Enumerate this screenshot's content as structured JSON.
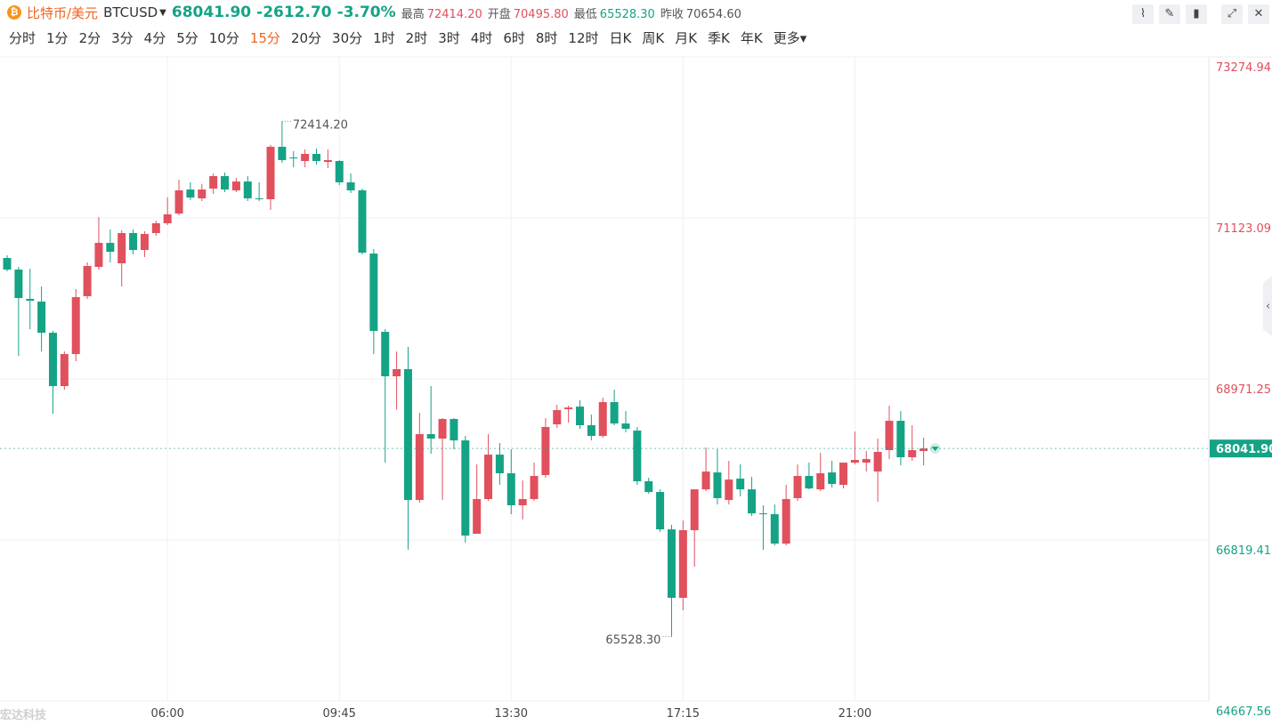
{
  "header": {
    "name": "比特币/美元",
    "symbol": "BTCUSD",
    "price": "68041.90",
    "change": "-2612.70",
    "change_pct": "-3.70%",
    "stats": [
      {
        "label": "最高",
        "value": "72414.20"
      },
      {
        "label": "开盘",
        "value": "70495.80"
      },
      {
        "label": "最低",
        "value": "65528.30"
      },
      {
        "label": "昨收",
        "value": "70654.60"
      }
    ]
  },
  "timeframes": [
    "分时",
    "1分",
    "2分",
    "3分",
    "4分",
    "5分",
    "10分",
    "15分",
    "20分",
    "30分",
    "1时",
    "2时",
    "3时",
    "4时",
    "6时",
    "8时",
    "12时",
    "日K",
    "周K",
    "月K",
    "季K",
    "年K",
    "更多"
  ],
  "watermark": "宏达科技",
  "chart_data": {
    "type": "candlestick",
    "up_color": "#e0505d",
    "down_color": "#15a386",
    "grid": true,
    "ylim": [
      64667.56,
      73274.94
    ],
    "yticks": [
      64667.56,
      66819.41,
      68971.25,
      71123.09,
      73274.94
    ],
    "high_label": "72414.20",
    "low_label": "65528.30",
    "last_label": "68041.90",
    "categories": [
      null,
      null,
      null,
      null,
      null,
      null,
      null,
      null,
      null,
      null,
      null,
      null,
      null,
      null,
      "06:00",
      null,
      null,
      null,
      null,
      null,
      null,
      null,
      null,
      null,
      null,
      null,
      null,
      null,
      null,
      "09:45",
      null,
      null,
      null,
      null,
      null,
      null,
      null,
      null,
      null,
      null,
      null,
      null,
      null,
      null,
      "13:30",
      null,
      null,
      null,
      null,
      null,
      null,
      null,
      null,
      null,
      null,
      null,
      null,
      null,
      null,
      "17:15",
      null,
      null,
      null,
      null,
      null,
      null,
      null,
      null,
      null,
      null,
      null,
      null,
      null,
      null,
      "21:00",
      null,
      null,
      null,
      null,
      null,
      null
    ],
    "open": [
      70588,
      70433,
      70041,
      70005,
      69589,
      68876,
      69304,
      70077,
      70469,
      70790,
      70517,
      70921,
      70695,
      70921,
      71052,
      71182,
      71503,
      71385,
      71515,
      71682,
      71492,
      71610,
      71385,
      71373,
      72074,
      71931,
      71884,
      71979,
      71872,
      71884,
      71599,
      71492,
      70647,
      69601,
      69007,
      69102,
      67354,
      68234,
      68174,
      68436,
      68150,
      66902,
      67366,
      67960,
      67711,
      67283,
      67366,
      67687,
      68365,
      68567,
      68602,
      68353,
      68210,
      68662,
      68376,
      68281,
      67604,
      67461,
      66961,
      66046,
      66950,
      67496,
      67722,
      67354,
      67639,
      67496,
      67175,
      67164,
      66771,
      67378,
      67675,
      67496,
      67722,
      67556,
      67853,
      67853,
      67734,
      68020,
      68412,
      67925,
      68008
    ],
    "high": [
      70624,
      70469,
      70445,
      70207,
      69613,
      69339,
      70172,
      70529,
      71135,
      70968,
      70957,
      70968,
      70945,
      71087,
      71396,
      71634,
      71599,
      71575,
      71717,
      71729,
      71658,
      71682,
      71599,
      72098,
      72414.2,
      72015,
      72039,
      72050,
      72039,
      71896,
      71717,
      71515,
      70707,
      69637,
      69339,
      69399,
      68519,
      68876,
      68448,
      68448,
      68210,
      67829,
      68234,
      68115,
      68032,
      67615,
      67853,
      68448,
      68626,
      68614,
      68686,
      68495,
      68721,
      68828,
      68543,
      68329,
      67651,
      67496,
      67021,
      67080,
      67496,
      68055,
      68032,
      67877,
      67829,
      67663,
      67283,
      67294,
      67556,
      67829,
      67853,
      67984,
      67877,
      67817,
      68269,
      68008,
      68174,
      68614,
      68543,
      68353,
      68186
    ],
    "low": [
      70410,
      69280,
      69637,
      69339,
      68507,
      68828,
      69209,
      70041,
      70433,
      70529,
      70207,
      70636,
      70600,
      70885,
      71028,
      71159,
      71361,
      71349,
      71444,
      71468,
      71468,
      71349,
      71349,
      71230,
      71860,
      71801,
      71801,
      71836,
      71789,
      71563,
      71456,
      70636,
      69304,
      67853,
      68562,
      66688,
      67318,
      67972,
      67354,
      68032,
      66783,
      66902,
      67342,
      67556,
      67164,
      67092,
      67342,
      67651,
      68317,
      68388,
      68305,
      68150,
      68186,
      68353,
      68258,
      67556,
      67437,
      66926,
      65528.3,
      65880,
      66462,
      67473,
      67294,
      67294,
      67401,
      67140,
      66688,
      66747,
      66747,
      67342,
      67496,
      67473,
      67520,
      67508,
      67829,
      67734,
      67330,
      67901,
      67817,
      67877,
      67817
    ],
    "close": [
      70433,
      70053,
      70017,
      69589,
      68876,
      69304,
      70065,
      70481,
      70790,
      70671,
      70921,
      70695,
      70909,
      71052,
      71171,
      71492,
      71396,
      71503,
      71682,
      71503,
      71610,
      71385,
      71373,
      72074,
      71896,
      71920,
      71979,
      71884,
      71896,
      71599,
      71492,
      70659,
      69613,
      69007,
      69102,
      67354,
      68234,
      68174,
      68436,
      68150,
      66878,
      67366,
      67960,
      67711,
      67283,
      67366,
      67675,
      68329,
      68555,
      68590,
      68353,
      68210,
      68662,
      68376,
      68305,
      67604,
      67461,
      66961,
      66046,
      66950,
      67496,
      67734,
      67378,
      67627,
      67496,
      67175,
      67164,
      66771,
      67366,
      67675,
      67508,
      67711,
      67568,
      67853,
      67889,
      67901,
      67996,
      68412,
      67925,
      68020,
      68041.9
    ]
  }
}
